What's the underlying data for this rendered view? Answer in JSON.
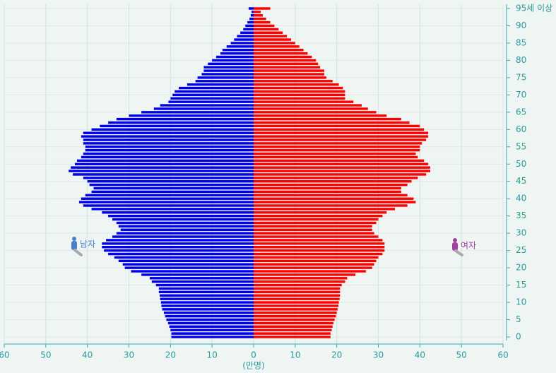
{
  "chart_data": {
    "type": "pyramid",
    "x_label": "(만명)",
    "categories": [
      "0",
      null,
      null,
      null,
      null,
      "5",
      null,
      null,
      null,
      null,
      "10",
      null,
      null,
      null,
      null,
      "15",
      null,
      null,
      null,
      null,
      "20",
      null,
      null,
      null,
      null,
      "25",
      null,
      null,
      null,
      null,
      "30",
      null,
      null,
      null,
      null,
      "35",
      null,
      null,
      null,
      null,
      "40",
      null,
      null,
      null,
      null,
      "45",
      null,
      null,
      null,
      null,
      "50",
      null,
      null,
      null,
      null,
      "55",
      null,
      null,
      null,
      null,
      "60",
      null,
      null,
      null,
      null,
      "65",
      null,
      null,
      null,
      null,
      "70",
      null,
      null,
      null,
      null,
      "75",
      null,
      null,
      null,
      null,
      "80",
      null,
      null,
      null,
      null,
      "85",
      null,
      null,
      null,
      null,
      "90",
      null,
      null,
      null,
      null,
      "95세 이상"
    ],
    "series": [
      {
        "name": "남자",
        "color": "#0000ee",
        "side": "left",
        "values": [
          19.8,
          19.8,
          20,
          20.3,
          20.6,
          21,
          21.3,
          21.6,
          22,
          22.2,
          22.3,
          22.5,
          22.6,
          22.8,
          22.8,
          23.5,
          24.5,
          25,
          27,
          29.5,
          31,
          31.5,
          32.5,
          33.5,
          35,
          36,
          36.5,
          36.5,
          35.5,
          34,
          33,
          32,
          32.5,
          33,
          34,
          35,
          36.5,
          39,
          41,
          42,
          41.5,
          40.5,
          39,
          38.5,
          39.5,
          40,
          41,
          43.5,
          44.5,
          44,
          43,
          42.5,
          41.5,
          41,
          40.5,
          40.5,
          41,
          41,
          41.5,
          41,
          39,
          37,
          35,
          33,
          30,
          27,
          24,
          22.5,
          20.5,
          20,
          19.5,
          19,
          18,
          16,
          14,
          13.5,
          12.5,
          12,
          12,
          11,
          10,
          9,
          8,
          7.5,
          6.5,
          5.5,
          4.7,
          4,
          3.2,
          2.5,
          2,
          1.5,
          1,
          0.7,
          0.5,
          1.2
        ]
      },
      {
        "name": "여자",
        "color": "#ff0000",
        "side": "right",
        "values": [
          18.5,
          18.5,
          18.8,
          19,
          19.2,
          19.5,
          19.8,
          20,
          20.2,
          20.4,
          20.5,
          20.7,
          20.8,
          20.8,
          20.8,
          21.2,
          22,
          22.5,
          24.5,
          27,
          28.5,
          29,
          29.5,
          30,
          31,
          31.5,
          31.5,
          31.5,
          31,
          30,
          29,
          28.5,
          28.5,
          29.5,
          30,
          31,
          32,
          34,
          37,
          39,
          38.5,
          37,
          35.5,
          35.5,
          37,
          38,
          39.5,
          41.5,
          42.5,
          42.5,
          42,
          41,
          39.5,
          39,
          40,
          40,
          40.5,
          41.5,
          42,
          42,
          41,
          40,
          37.5,
          35.5,
          32,
          29.5,
          27.5,
          26,
          24,
          22,
          22,
          22,
          21.5,
          20.5,
          19,
          17.5,
          17,
          17,
          16,
          15.5,
          15,
          14,
          13,
          12,
          11,
          10,
          9,
          8,
          7,
          6,
          5,
          4,
          3,
          2.2,
          1.7,
          4
        ]
      }
    ],
    "xlim": [
      -60,
      60
    ],
    "xticks": [
      {
        "value": -60,
        "label": "60"
      },
      {
        "value": -50,
        "label": "50"
      },
      {
        "value": -40,
        "label": "40"
      },
      {
        "value": -30,
        "label": "30"
      },
      {
        "value": -20,
        "label": "20"
      },
      {
        "value": -10,
        "label": "10"
      },
      0,
      10,
      20,
      30,
      40,
      50,
      60
    ],
    "grid": true
  }
}
